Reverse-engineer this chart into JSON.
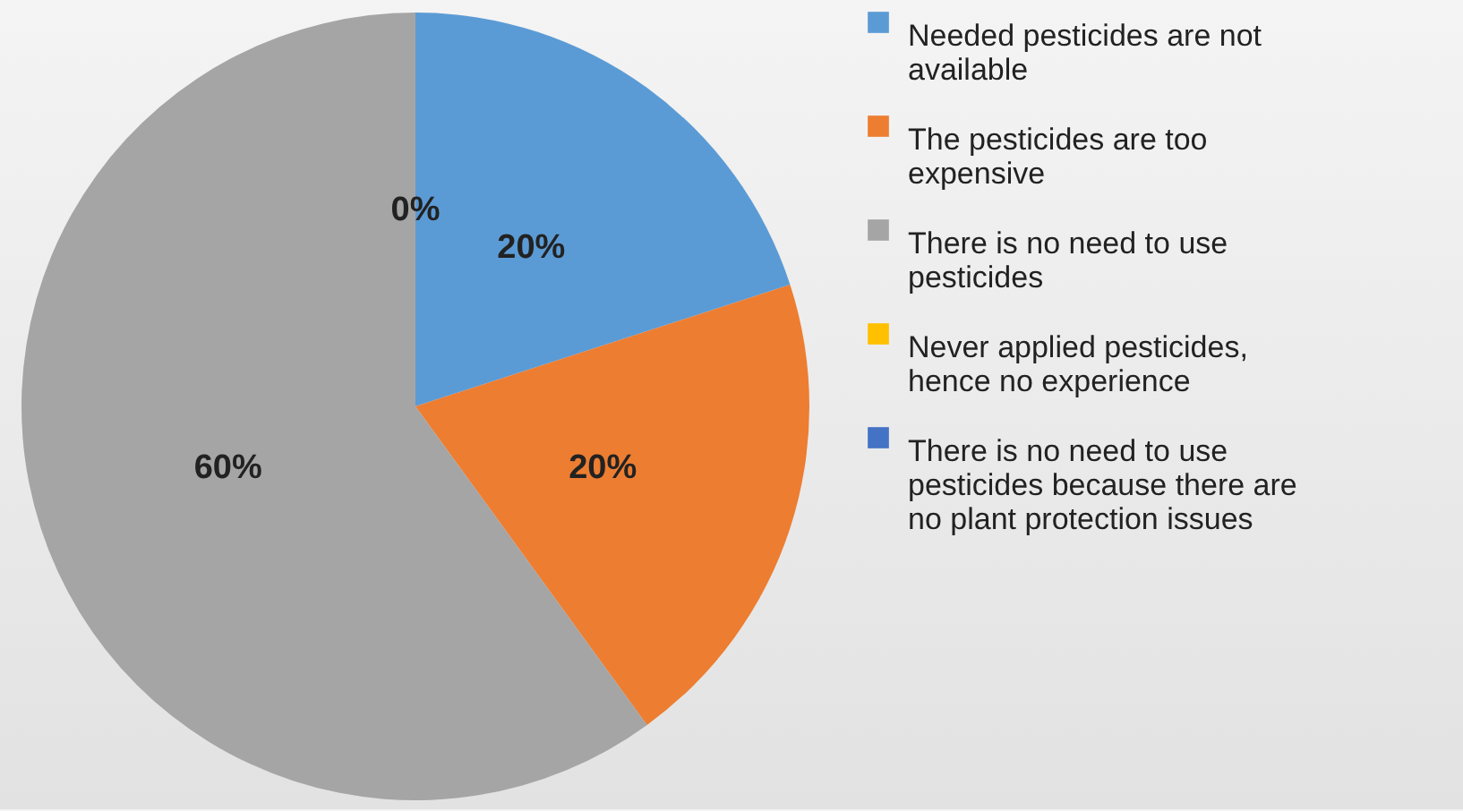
{
  "chart_data": {
    "type": "pie",
    "categories": [
      "Needed pesticides are not available",
      "The pesticides are too expensive",
      "There is no need to use pesticides",
      "Never applied pesticides, hence no experience",
      "There is no need to use pesticides because there are no plant protection issues"
    ],
    "values": [
      20,
      20,
      60,
      0,
      0
    ],
    "colors": [
      "#5b9bd5",
      "#ed7d31",
      "#a5a5a5",
      "#ffc000",
      "#4472c4"
    ],
    "value_labels": [
      "20%",
      "20%",
      "60%",
      "0%",
      null
    ],
    "legend": "right"
  }
}
